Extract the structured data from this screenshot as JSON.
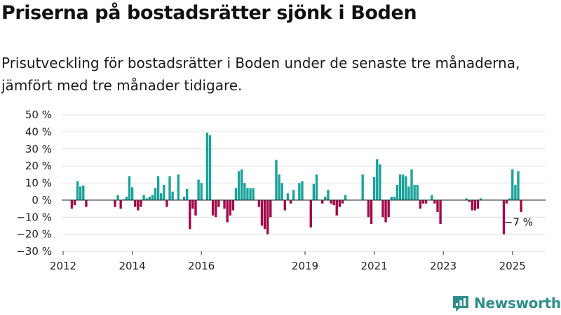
{
  "title": "Priserna på bostadsrätter sjönk i Boden",
  "subtitle": "Prisutveckling för bostadsrätter i Boden under de senaste tre månaderna, jämfört med tre månader tidigare.",
  "brand": {
    "name": "Newsworthy",
    "icon": "newsworthy-logo-icon"
  },
  "colors": {
    "positive": "#1aa39a",
    "negative": "#a3084a",
    "grid": "#dddddd",
    "axis": "#333333",
    "text": "#222222"
  },
  "chart_data": {
    "type": "bar",
    "xlabel": "",
    "ylabel": "",
    "ylim": [
      -30,
      50
    ],
    "yticks": [
      -30,
      -20,
      -10,
      0,
      10,
      20,
      30,
      40,
      50
    ],
    "ytick_labels": [
      "−30 %",
      "−20 %",
      "−10 %",
      "0 %",
      "10 %",
      "20 %",
      "30 %",
      "40 %",
      "50 %"
    ],
    "x_axis": "month",
    "xlim": [
      "2012-01",
      "2025-12"
    ],
    "xtick_labels": [
      {
        "label": "2012",
        "month": "2012-01"
      },
      {
        "label": "2014",
        "month": "2014-01"
      },
      {
        "label": "2016",
        "month": "2016-01"
      },
      {
        "label": "2019",
        "month": "2019-01"
      },
      {
        "label": "2021",
        "month": "2021-01"
      },
      {
        "label": "2023",
        "month": "2023-01"
      },
      {
        "label": "2025",
        "month": "2025-01"
      }
    ],
    "grid": true,
    "annotation": {
      "text": "−7 %",
      "month": "2025-01"
    },
    "bars": [
      {
        "m": "2012-04",
        "v": -5
      },
      {
        "m": "2012-05",
        "v": -3
      },
      {
        "m": "2012-06",
        "v": 11
      },
      {
        "m": "2012-07",
        "v": 8
      },
      {
        "m": "2012-08",
        "v": 8.5
      },
      {
        "m": "2012-09",
        "v": -4
      },
      {
        "m": "2013-07",
        "v": -4
      },
      {
        "m": "2013-08",
        "v": 3
      },
      {
        "m": "2013-09",
        "v": -5
      },
      {
        "m": "2013-10",
        "v": 0.5
      },
      {
        "m": "2013-11",
        "v": 2
      },
      {
        "m": "2013-12",
        "v": 14
      },
      {
        "m": "2014-01",
        "v": 7.5
      },
      {
        "m": "2014-02",
        "v": -4
      },
      {
        "m": "2014-03",
        "v": -6
      },
      {
        "m": "2014-04",
        "v": -4
      },
      {
        "m": "2014-05",
        "v": 3
      },
      {
        "m": "2014-06",
        "v": 1
      },
      {
        "m": "2014-07",
        "v": 2
      },
      {
        "m": "2014-08",
        "v": 3
      },
      {
        "m": "2014-09",
        "v": 7
      },
      {
        "m": "2014-10",
        "v": 14
      },
      {
        "m": "2014-11",
        "v": 4
      },
      {
        "m": "2014-12",
        "v": 9
      },
      {
        "m": "2015-01",
        "v": -4
      },
      {
        "m": "2015-02",
        "v": 14
      },
      {
        "m": "2015-03",
        "v": 5
      },
      {
        "m": "2015-05",
        "v": 15
      },
      {
        "m": "2015-07",
        "v": 2
      },
      {
        "m": "2015-08",
        "v": 6.5
      },
      {
        "m": "2015-09",
        "v": -17
      },
      {
        "m": "2015-10",
        "v": -5
      },
      {
        "m": "2015-11",
        "v": -9
      },
      {
        "m": "2015-12",
        "v": 12
      },
      {
        "m": "2016-01",
        "v": 10
      },
      {
        "m": "2016-03",
        "v": 39.5
      },
      {
        "m": "2016-04",
        "v": 38
      },
      {
        "m": "2016-05",
        "v": -9
      },
      {
        "m": "2016-06",
        "v": -10
      },
      {
        "m": "2016-07",
        "v": -4
      },
      {
        "m": "2016-09",
        "v": -5
      },
      {
        "m": "2016-10",
        "v": -13
      },
      {
        "m": "2016-11",
        "v": -9
      },
      {
        "m": "2016-12",
        "v": -6
      },
      {
        "m": "2017-01",
        "v": 7
      },
      {
        "m": "2017-02",
        "v": 17
      },
      {
        "m": "2017-03",
        "v": 18
      },
      {
        "m": "2017-04",
        "v": 10
      },
      {
        "m": "2017-05",
        "v": 7
      },
      {
        "m": "2017-06",
        "v": 7
      },
      {
        "m": "2017-07",
        "v": 7
      },
      {
        "m": "2017-09",
        "v": -4
      },
      {
        "m": "2017-10",
        "v": -15
      },
      {
        "m": "2017-11",
        "v": -17
      },
      {
        "m": "2017-12",
        "v": -20
      },
      {
        "m": "2018-01",
        "v": -10
      },
      {
        "m": "2018-03",
        "v": 23.5
      },
      {
        "m": "2018-04",
        "v": 15
      },
      {
        "m": "2018-05",
        "v": 10
      },
      {
        "m": "2018-06",
        "v": -6
      },
      {
        "m": "2018-07",
        "v": 4
      },
      {
        "m": "2018-08",
        "v": -2
      },
      {
        "m": "2018-09",
        "v": 6
      },
      {
        "m": "2018-11",
        "v": 10
      },
      {
        "m": "2018-12",
        "v": 11
      },
      {
        "m": "2019-03",
        "v": -16
      },
      {
        "m": "2019-04",
        "v": 9.5
      },
      {
        "m": "2019-05",
        "v": 15
      },
      {
        "m": "2019-07",
        "v": -2
      },
      {
        "m": "2019-08",
        "v": 2
      },
      {
        "m": "2019-09",
        "v": 6
      },
      {
        "m": "2019-10",
        "v": -2
      },
      {
        "m": "2019-11",
        "v": -3
      },
      {
        "m": "2019-12",
        "v": -9
      },
      {
        "m": "2020-01",
        "v": -4
      },
      {
        "m": "2020-02",
        "v": -2
      },
      {
        "m": "2020-03",
        "v": 3
      },
      {
        "m": "2020-09",
        "v": 15
      },
      {
        "m": "2020-11",
        "v": -10
      },
      {
        "m": "2020-12",
        "v": -14
      },
      {
        "m": "2021-01",
        "v": 13.5
      },
      {
        "m": "2021-02",
        "v": 24
      },
      {
        "m": "2021-03",
        "v": 21
      },
      {
        "m": "2021-04",
        "v": -10
      },
      {
        "m": "2021-05",
        "v": -13
      },
      {
        "m": "2021-06",
        "v": -10
      },
      {
        "m": "2021-07",
        "v": 2
      },
      {
        "m": "2021-08",
        "v": 2
      },
      {
        "m": "2021-09",
        "v": 9
      },
      {
        "m": "2021-10",
        "v": 15
      },
      {
        "m": "2021-11",
        "v": 15
      },
      {
        "m": "2021-12",
        "v": 14
      },
      {
        "m": "2022-01",
        "v": 8
      },
      {
        "m": "2022-02",
        "v": 18
      },
      {
        "m": "2022-03",
        "v": 9
      },
      {
        "m": "2022-04",
        "v": 9
      },
      {
        "m": "2022-05",
        "v": -5
      },
      {
        "m": "2022-06",
        "v": -2
      },
      {
        "m": "2022-07",
        "v": -2
      },
      {
        "m": "2022-09",
        "v": 3
      },
      {
        "m": "2022-10",
        "v": -2
      },
      {
        "m": "2022-11",
        "v": -7
      },
      {
        "m": "2022-12",
        "v": -14
      },
      {
        "m": "2023-09",
        "v": 1
      },
      {
        "m": "2023-10",
        "v": -1
      },
      {
        "m": "2023-11",
        "v": -6
      },
      {
        "m": "2023-12",
        "v": -6
      },
      {
        "m": "2024-01",
        "v": -5
      },
      {
        "m": "2024-02",
        "v": 1
      },
      {
        "m": "2024-10",
        "v": -20
      },
      {
        "m": "2024-11",
        "v": -2
      },
      {
        "m": "2024-12",
        "v": 1
      },
      {
        "m": "2025-01",
        "v": 18
      },
      {
        "m": "2025-02",
        "v": 9
      },
      {
        "m": "2025-03",
        "v": 17
      },
      {
        "m": "2025-04",
        "v": -7
      }
    ]
  }
}
